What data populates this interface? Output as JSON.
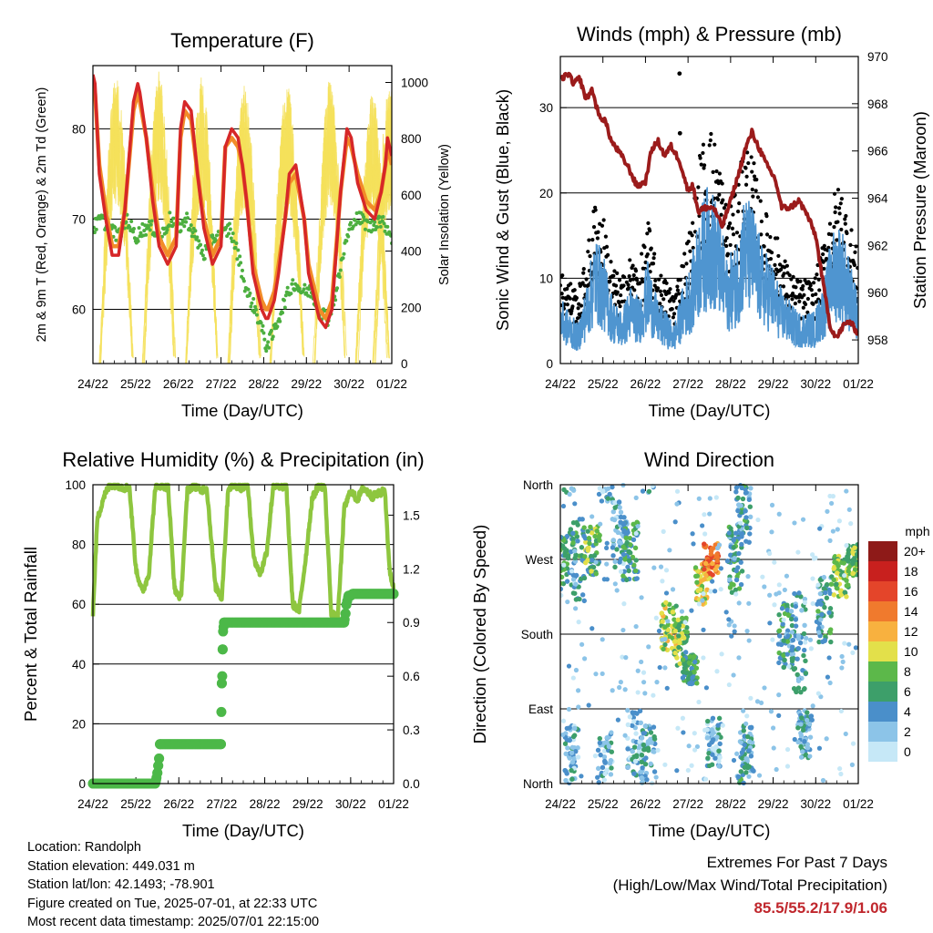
{
  "colors": {
    "temp_2m": "#d62728",
    "temp_9m": "#f28c28",
    "dewpoint": "#4caf3f",
    "solar": "#f5e05a",
    "wind": "#4f95d0",
    "gust": "#000000",
    "pressure": "#9b1b1b",
    "rh": "#8ec63f",
    "precip": "#4cb848",
    "extremes_value": "#c0272d"
  },
  "chart_data": [
    {
      "id": "temperature",
      "type": "line",
      "title": "Temperature (F)",
      "xlabel": "Time (Day/UTC)",
      "ylabel": "2m & 9m T (Red, Orange) & 2m Td (Green)",
      "y2label": "Solar Insolation (Yellow)",
      "x_ticks": [
        "24/22",
        "25/22",
        "26/22",
        "27/22",
        "28/22",
        "29/22",
        "30/22",
        "01/22"
      ],
      "xlim": [
        0,
        7
      ],
      "ylim": [
        54,
        87
      ],
      "y_ticks": [
        60,
        70,
        80
      ],
      "y2lim": [
        0,
        1060
      ],
      "y2_ticks": [
        0,
        200,
        400,
        600,
        800,
        1000
      ],
      "grid": "horizontal",
      "series": [
        {
          "key": "temp_2m",
          "x": [
            0,
            0.05,
            0.15,
            0.3,
            0.45,
            0.6,
            0.75,
            0.95,
            1.05,
            1.1,
            1.25,
            1.4,
            1.55,
            1.75,
            1.95,
            2.05,
            2.15,
            2.3,
            2.45,
            2.6,
            2.8,
            3.0,
            3.1,
            3.25,
            3.4,
            3.5,
            3.6,
            3.75,
            3.95,
            4.05,
            4.1,
            4.25,
            4.35,
            4.5,
            4.6,
            4.75,
            4.95,
            5.05,
            5.15,
            5.3,
            5.45,
            5.6,
            5.8,
            5.95,
            6.05,
            6.2,
            6.4,
            6.6,
            6.75,
            6.85,
            6.9,
            7.0
          ],
          "values": [
            86,
            85,
            75,
            70,
            66,
            66,
            71,
            83,
            85,
            84,
            79,
            72,
            67,
            65,
            67,
            80,
            83,
            82,
            75,
            69,
            65,
            67,
            78,
            80,
            79,
            76,
            72,
            64,
            60,
            59,
            59,
            61,
            64,
            70,
            75,
            76,
            70,
            64,
            62,
            59,
            58,
            60,
            73,
            80,
            79,
            74,
            71,
            70,
            73,
            76,
            79,
            77
          ]
        },
        {
          "key": "temp_9m",
          "x": [
            0,
            0.05,
            0.15,
            0.3,
            0.45,
            0.6,
            0.75,
            0.95,
            1.05,
            1.1,
            1.25,
            1.4,
            1.55,
            1.75,
            1.95,
            2.05,
            2.15,
            2.3,
            2.45,
            2.6,
            2.8,
            3.0,
            3.1,
            3.25,
            3.4,
            3.5,
            3.6,
            3.75,
            3.95,
            4.05,
            4.1,
            4.25,
            4.35,
            4.5,
            4.6,
            4.75,
            4.95,
            5.05,
            5.15,
            5.3,
            5.45,
            5.6,
            5.8,
            5.95,
            6.05,
            6.2,
            6.4,
            6.6,
            6.75,
            6.85,
            6.9,
            7.0
          ],
          "values": [
            85,
            84,
            76,
            71,
            67,
            67,
            71,
            82,
            84,
            83,
            79,
            73,
            68,
            66,
            68,
            79,
            82,
            81,
            75,
            70,
            66,
            68,
            78,
            79,
            78,
            76,
            72,
            65,
            61,
            60,
            60,
            62,
            65,
            70,
            74,
            75,
            70,
            65,
            63,
            60,
            59,
            61,
            73,
            79,
            78,
            75,
            72,
            71,
            73,
            76,
            78,
            76
          ]
        },
        {
          "key": "dewpoint",
          "x": [
            0,
            0.2,
            0.4,
            0.6,
            0.8,
            1.0,
            1.2,
            1.4,
            1.6,
            1.8,
            2.0,
            2.2,
            2.4,
            2.6,
            2.8,
            3.0,
            3.2,
            3.4,
            3.6,
            3.8,
            3.95,
            4.05,
            4.2,
            4.35,
            4.5,
            4.7,
            4.9,
            5.1,
            5.3,
            5.5,
            5.7,
            5.9,
            6.1,
            6.3,
            6.5,
            6.7,
            6.9,
            7.0
          ],
          "values": [
            69,
            70,
            69,
            68,
            70,
            68,
            69,
            69,
            68,
            70,
            69,
            70,
            68,
            66,
            68,
            68,
            69,
            66,
            62,
            60,
            58,
            56,
            57,
            59,
            61,
            63,
            62,
            62,
            60,
            59,
            62,
            67,
            70,
            70,
            69,
            70,
            69,
            68
          ]
        },
        {
          "key": "solar",
          "peaks": [
            0.55,
            1.55,
            2.55,
            3.55,
            4.55,
            5.55,
            6.55,
            6.95
          ],
          "peak_values": [
            1030,
            1040,
            1020,
            1000,
            990,
            1010,
            960,
            990
          ]
        }
      ]
    },
    {
      "id": "winds",
      "type": "scatter",
      "title": "Winds (mph) & Pressure (mb)",
      "xlabel": "Time (Day/UTC)",
      "ylabel": "Sonic Wind & Gust (Blue, Black)",
      "y2label": "Station Pressure (Maroon)",
      "x_ticks": [
        "24/22",
        "25/22",
        "26/22",
        "27/22",
        "28/22",
        "29/22",
        "30/22",
        "01/22"
      ],
      "xlim": [
        0,
        7
      ],
      "ylim": [
        0,
        36
      ],
      "y_ticks": [
        0,
        10,
        20,
        30
      ],
      "y2lim": [
        957,
        970
      ],
      "y2_ticks": [
        958,
        960,
        962,
        964,
        966,
        968,
        970
      ],
      "grid": "horizontal",
      "series": [
        {
          "key": "pressure",
          "x": [
            0,
            0.2,
            0.3,
            0.45,
            0.6,
            0.75,
            0.9,
            1.05,
            1.2,
            1.4,
            1.6,
            1.8,
            2.0,
            2.15,
            2.3,
            2.45,
            2.6,
            2.8,
            3.0,
            3.1,
            3.25,
            3.4,
            3.6,
            3.8,
            4.0,
            4.2,
            4.35,
            4.5,
            4.65,
            4.85,
            5.05,
            5.2,
            5.4,
            5.6,
            5.8,
            6.0,
            6.2,
            6.35,
            6.5,
            6.65,
            6.8,
            6.9,
            7.0
          ],
          "values": [
            969,
            969.3,
            968.8,
            969.1,
            968.2,
            968.6,
            967.5,
            967.3,
            966.4,
            965.9,
            965.3,
            964.5,
            964.7,
            966.1,
            966.4,
            965.8,
            966.2,
            965.6,
            964.3,
            964.6,
            963.4,
            963.6,
            963.6,
            962.8,
            963.9,
            965.1,
            966.1,
            966.8,
            966.2,
            965.4,
            964.8,
            963.6,
            963.6,
            963.9,
            963.3,
            962.4,
            960.1,
            958.5,
            958.1,
            958.6,
            958.8,
            958.5,
            958.3
          ]
        },
        {
          "key": "wind",
          "mean": [
            5,
            4,
            3,
            6,
            10,
            8,
            5,
            4,
            6,
            5,
            8,
            5,
            4,
            3,
            6,
            8,
            12,
            14,
            12,
            8,
            9,
            13,
            12,
            9,
            8,
            6,
            5,
            4,
            4,
            4,
            6,
            10,
            11,
            8,
            5
          ]
        },
        {
          "key": "gust",
          "mean": [
            8,
            7,
            6,
            9,
            14,
            12,
            8,
            7,
            9,
            8,
            12,
            8,
            7,
            6,
            9,
            12,
            18,
            20,
            18,
            13,
            14,
            19,
            17,
            13,
            12,
            10,
            8,
            7,
            7,
            7,
            10,
            14,
            15,
            12,
            9
          ]
        },
        {
          "key": "gust_outliers",
          "x": [
            2.8,
            2.81
          ],
          "values": [
            34,
            27
          ]
        }
      ]
    },
    {
      "id": "humidity",
      "type": "line",
      "title": "Relative Humidity (%) & Precipitation (in)",
      "xlabel": "Time (Day/UTC)",
      "ylabel": "Percent & Total Rainfall",
      "x_ticks": [
        "24/22",
        "25/22",
        "26/22",
        "27/22",
        "28/22",
        "29/22",
        "30/22",
        "01/22"
      ],
      "xlim": [
        0,
        7
      ],
      "ylim": [
        0,
        100
      ],
      "y_ticks": [
        0,
        20,
        40,
        60,
        80,
        100
      ],
      "y2lim": [
        0,
        1.67
      ],
      "y2_ticks": [
        "0.0",
        "0.3",
        "0.6",
        "0.9",
        "1.2",
        "1.5"
      ],
      "y2_tick_values": [
        0,
        0.3,
        0.6,
        0.9,
        1.2,
        1.5
      ],
      "grid": "horizontal",
      "series": [
        {
          "key": "rh",
          "x": [
            0,
            0.1,
            0.25,
            0.4,
            0.55,
            0.7,
            0.85,
            1.0,
            1.15,
            1.3,
            1.45,
            1.6,
            1.75,
            1.9,
            2.05,
            2.2,
            2.35,
            2.5,
            2.65,
            2.85,
            3.0,
            3.15,
            3.3,
            3.45,
            3.6,
            3.75,
            3.9,
            4.05,
            4.2,
            4.35,
            4.5,
            4.65,
            4.8,
            4.95,
            5.1,
            5.25,
            5.4,
            5.55,
            5.7,
            5.85,
            6.0,
            6.15,
            6.3,
            6.5,
            6.65,
            6.8,
            6.9,
            7.0
          ],
          "values": [
            57,
            88,
            96,
            100,
            100,
            99,
            99,
            72,
            64,
            70,
            99,
            100,
            99,
            65,
            62,
            98,
            100,
            98,
            99,
            66,
            62,
            99,
            100,
            99,
            100,
            75,
            70,
            78,
            100,
            99,
            100,
            60,
            58,
            75,
            95,
            100,
            99,
            57,
            55,
            92,
            98,
            95,
            99,
            96,
            97,
            98,
            72,
            65
          ]
        },
        {
          "key": "precip",
          "x": [
            0,
            1.45,
            1.47,
            1.5,
            1.52,
            1.54,
            1.56,
            2.98,
            2.99,
            3.0,
            3.01,
            3.02,
            3.03,
            3.05,
            5.85,
            5.88,
            5.9,
            5.95,
            6.0,
            6.05,
            7.0
          ],
          "values": [
            0,
            0,
            0.02,
            0.06,
            0.1,
            0.14,
            0.22,
            0.22,
            0.4,
            0.56,
            0.6,
            0.75,
            0.85,
            0.9,
            0.9,
            0.95,
            1.0,
            1.05,
            1.05,
            1.06,
            1.06
          ]
        }
      ]
    },
    {
      "id": "direction",
      "type": "scatter",
      "title": "Wind Direction",
      "xlabel": "Time (Day/UTC)",
      "ylabel": "Direction (Colored By Speed)",
      "x_ticks": [
        "24/22",
        "25/22",
        "26/22",
        "27/22",
        "28/22",
        "29/22",
        "30/22",
        "01/22"
      ],
      "xlim": [
        0,
        7
      ],
      "ylim": [
        0,
        360
      ],
      "y_ticks": [
        "North",
        "East",
        "South",
        "West",
        "North"
      ],
      "y_tick_values": [
        0,
        90,
        180,
        270,
        360
      ],
      "grid": "horizontal",
      "colorbar": {
        "title": "mph",
        "labels": [
          "0",
          "2",
          "4",
          "6",
          "8",
          "10",
          "12",
          "14",
          "16",
          "18",
          "20+"
        ],
        "colors": [
          "#c6e8f7",
          "#8cc4e8",
          "#4a8fca",
          "#3d9f6a",
          "#5cb84a",
          "#e3e04a",
          "#f8b13f",
          "#f07a2d",
          "#e4452a",
          "#c8201e",
          "#8e1a18"
        ]
      },
      "clusters": [
        {
          "x": 0.05,
          "dir": 270,
          "spread": 30,
          "spd": 6
        },
        {
          "x": 0.25,
          "dir": 30,
          "spread": 40,
          "spd": 3
        },
        {
          "x": 0.4,
          "dir": 270,
          "spread": 50,
          "spd": 5
        },
        {
          "x": 0.75,
          "dir": 280,
          "spread": 30,
          "spd": 7
        },
        {
          "x": 1.05,
          "dir": 20,
          "spread": 40,
          "spd": 3
        },
        {
          "x": 1.4,
          "dir": 300,
          "spread": 40,
          "spd": 3
        },
        {
          "x": 1.65,
          "dir": 280,
          "spread": 35,
          "spd": 6
        },
        {
          "x": 1.75,
          "dir": 50,
          "spread": 40,
          "spd": 3
        },
        {
          "x": 2.05,
          "dir": 30,
          "spread": 40,
          "spd": 4
        },
        {
          "x": 2.55,
          "dir": 190,
          "spread": 30,
          "spd": 9
        },
        {
          "x": 2.85,
          "dir": 170,
          "spread": 30,
          "spd": 8
        },
        {
          "x": 3.05,
          "dir": 140,
          "spread": 20,
          "spd": 6
        },
        {
          "x": 3.35,
          "dir": 240,
          "spread": 25,
          "spd": 10
        },
        {
          "x": 3.55,
          "dir": 270,
          "spread": 20,
          "spd": 14
        },
        {
          "x": 3.6,
          "dir": 50,
          "spread": 30,
          "spd": 3
        },
        {
          "x": 4.1,
          "dir": 270,
          "spread": 40,
          "spd": 5
        },
        {
          "x": 4.3,
          "dir": 330,
          "spread": 40,
          "spd": 5
        },
        {
          "x": 4.4,
          "dir": 40,
          "spread": 30,
          "spd": 4
        },
        {
          "x": 5.3,
          "dir": 180,
          "spread": 40,
          "spd": 5
        },
        {
          "x": 5.6,
          "dir": 170,
          "spread": 60,
          "spd": 4
        },
        {
          "x": 5.75,
          "dir": 60,
          "spread": 30,
          "spd": 4
        },
        {
          "x": 6.2,
          "dir": 210,
          "spread": 40,
          "spd": 5
        },
        {
          "x": 6.6,
          "dir": 250,
          "spread": 25,
          "spd": 8
        },
        {
          "x": 6.9,
          "dir": 270,
          "spread": 20,
          "spd": 8
        }
      ]
    }
  ],
  "info": {
    "location": "Location: Randolph",
    "elevation": "Station elevation: 449.031 m",
    "latlon": "Station lat/lon: 42.1493; -78.901",
    "created": "Figure created on Tue, 2025-07-01, at 22:33 UTC",
    "recent": "Most recent data timestamp: 2025/07/01 22:15:00"
  },
  "extremes": {
    "title": "Extremes For Past 7 Days",
    "subtitle": "(High/Low/Max Wind/Total Precipitation)",
    "values": "85.5/55.2/17.9/1.06"
  }
}
